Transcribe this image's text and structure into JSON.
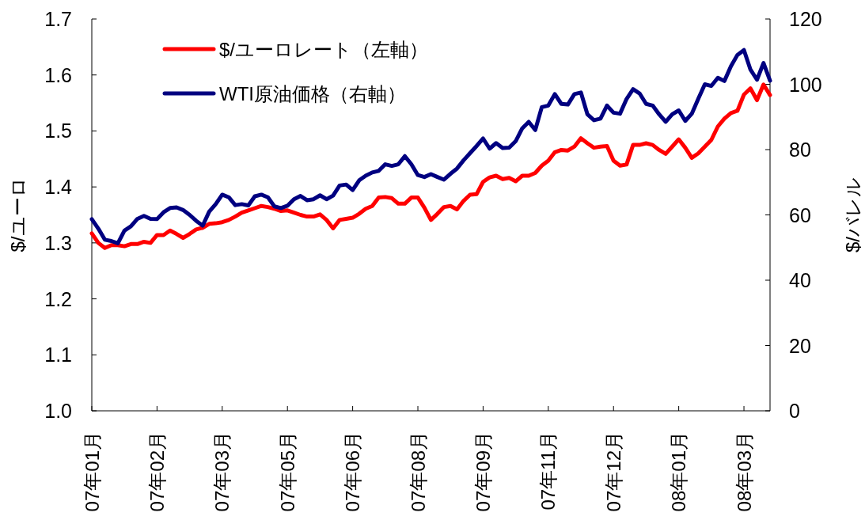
{
  "chart_data": {
    "type": "line",
    "categories": [
      "07年01月",
      null,
      null,
      null,
      null,
      null,
      null,
      null,
      null,
      null,
      "07年02月",
      null,
      null,
      null,
      null,
      null,
      null,
      null,
      null,
      null,
      "07年03月",
      null,
      null,
      null,
      null,
      null,
      null,
      null,
      null,
      null,
      "07年05月",
      null,
      null,
      null,
      null,
      null,
      null,
      null,
      null,
      null,
      "07年06月",
      null,
      null,
      null,
      null,
      null,
      null,
      null,
      null,
      null,
      "07年08月",
      null,
      null,
      null,
      null,
      null,
      null,
      null,
      null,
      null,
      "07年09月",
      null,
      null,
      null,
      null,
      null,
      null,
      null,
      null,
      null,
      "07年11月",
      null,
      null,
      null,
      null,
      null,
      null,
      null,
      null,
      null,
      "07年12月",
      null,
      null,
      null,
      null,
      null,
      null,
      null,
      null,
      null,
      "08年01月",
      null,
      null,
      null,
      null,
      null,
      null,
      null,
      null,
      null,
      "08年03月",
      null,
      null,
      null,
      null
    ],
    "series": [
      {
        "name": "$/ユーロレート（左軸）",
        "color": "#ff0000",
        "values": [
          1.317,
          1.3,
          1.291,
          1.296,
          1.296,
          1.294,
          1.298,
          1.298,
          1.302,
          1.3,
          1.314,
          1.314,
          1.322,
          1.316,
          1.309,
          1.316,
          1.324,
          1.327,
          1.334,
          1.335,
          1.337,
          1.341,
          1.347,
          1.354,
          1.358,
          1.362,
          1.366,
          1.364,
          1.361,
          1.357,
          1.358,
          1.354,
          1.35,
          1.347,
          1.347,
          1.351,
          1.341,
          1.326,
          1.341,
          1.343,
          1.345,
          1.352,
          1.361,
          1.366,
          1.381,
          1.382,
          1.38,
          1.37,
          1.37,
          1.381,
          1.381,
          1.363,
          1.341,
          1.352,
          1.364,
          1.366,
          1.36,
          1.375,
          1.386,
          1.387,
          1.409,
          1.417,
          1.42,
          1.414,
          1.416,
          1.41,
          1.42,
          1.42,
          1.425,
          1.438,
          1.447,
          1.462,
          1.466,
          1.465,
          1.472,
          1.487,
          1.478,
          1.47,
          1.472,
          1.473,
          1.447,
          1.438,
          1.44,
          1.475,
          1.475,
          1.478,
          1.475,
          1.466,
          1.459,
          1.472,
          1.485,
          1.47,
          1.452,
          1.46,
          1.472,
          1.484,
          1.508,
          1.522,
          1.532,
          1.536,
          1.565,
          1.576,
          1.555,
          1.583,
          1.564
        ]
      },
      {
        "name": "WTI原油価格（右軸）",
        "color": "#000080",
        "axis": "y2",
        "values": [
          58.7,
          55.8,
          52.4,
          52.0,
          51.3,
          55.2,
          56.5,
          58.8,
          59.7,
          58.8,
          58.7,
          60.8,
          62.1,
          62.3,
          61.5,
          60.0,
          58.2,
          56.7,
          61.0,
          63.3,
          66.2,
          65.4,
          63.0,
          63.3,
          62.9,
          65.7,
          66.2,
          65.4,
          62.6,
          62.1,
          62.8,
          64.8,
          65.8,
          64.5,
          64.8,
          66.0,
          64.8,
          65.9,
          69.0,
          69.3,
          67.6,
          70.6,
          72.0,
          73.0,
          73.5,
          75.5,
          75.0,
          75.5,
          78.0,
          75.5,
          72.2,
          71.6,
          72.5,
          71.6,
          70.8,
          72.6,
          74.2,
          76.7,
          78.9,
          81.1,
          83.4,
          80.3,
          82.0,
          80.5,
          80.6,
          82.6,
          86.5,
          88.5,
          86.0,
          93.0,
          93.5,
          97.0,
          94.0,
          93.8,
          97.0,
          97.5,
          90.8,
          89.0,
          89.5,
          93.5,
          91.3,
          91.0,
          95.5,
          98.5,
          97.2,
          94.0,
          93.5,
          90.8,
          88.5,
          90.8,
          92.0,
          88.8,
          91.0,
          95.6,
          100.0,
          99.5,
          102.0,
          101.0,
          105.5,
          109.0,
          110.5,
          104.5,
          101.4,
          106.5,
          101.1
        ]
      }
    ],
    "ylabel": "$/ユーロ",
    "y2label": "$/バレル",
    "ylim": [
      1.0,
      1.7
    ],
    "yticks": [
      {
        "value": 1,
        "label": "1.0"
      },
      1.1,
      1.2,
      1.3,
      1.4,
      1.5,
      1.6,
      1.7
    ],
    "y2lim": [
      0,
      120
    ],
    "y2ticks": [
      0,
      20,
      40,
      60,
      80,
      100,
      120
    ],
    "legend": "top left",
    "line_style": "solid"
  }
}
